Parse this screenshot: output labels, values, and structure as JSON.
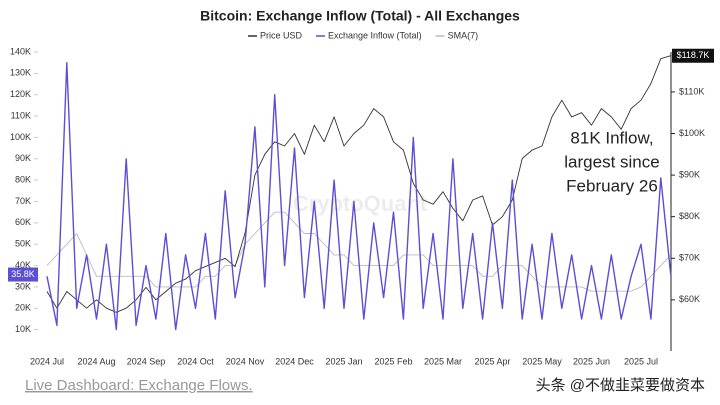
{
  "chart_data": {
    "type": "line",
    "title": "Bitcoin: Exchange Inflow (Total) - All Exchanges",
    "categories": [
      "2024 Jul",
      null,
      null,
      null,
      null,
      "2024 Aug",
      null,
      null,
      null,
      null,
      "2024 Sep",
      null,
      null,
      null,
      null,
      "2024 Oct",
      null,
      null,
      null,
      null,
      "2024 Nov",
      null,
      null,
      null,
      null,
      "2024 Dec",
      null,
      null,
      null,
      null,
      "2025 Jan",
      null,
      null,
      null,
      null,
      "2025 Feb",
      null,
      null,
      null,
      null,
      "2025 Mar",
      null,
      null,
      null,
      null,
      "2025 Apr",
      null,
      null,
      null,
      null,
      "2025 May",
      null,
      null,
      null,
      null,
      "2025 Jun",
      null,
      null,
      null,
      null,
      "2025 Jul",
      null,
      null,
      null
    ],
    "series": [
      {
        "name": "Price USD",
        "color": "#333333",
        "axis": "y2",
        "values": [
          62000,
          58000,
          62000,
          60000,
          58000,
          60000,
          58000,
          57000,
          58000,
          60000,
          63000,
          60000,
          62000,
          64000,
          65000,
          67000,
          68000,
          69000,
          70000,
          68000,
          76000,
          90000,
          95000,
          98000,
          97000,
          100000,
          95000,
          102000,
          98000,
          104000,
          97000,
          100000,
          102000,
          106000,
          104000,
          98000,
          96000,
          88000,
          84000,
          83000,
          86000,
          82000,
          79000,
          84000,
          85000,
          78000,
          80000,
          84000,
          94000,
          96000,
          97000,
          104000,
          108000,
          104000,
          105000,
          102000,
          106000,
          104000,
          101000,
          106000,
          108000,
          112000,
          118000,
          118700
        ],
        "value_labels": [
          null,
          null,
          null,
          null,
          null,
          null,
          null,
          null,
          null,
          null,
          null,
          null,
          null,
          null,
          null,
          null,
          null,
          null,
          null,
          null,
          null,
          null,
          null,
          null,
          null,
          null,
          null,
          null,
          null,
          null,
          null,
          null,
          null,
          null,
          null,
          null,
          null,
          null,
          null,
          null,
          null,
          null,
          null,
          null,
          null,
          null,
          null,
          null,
          null,
          null,
          null,
          null,
          null,
          null,
          null,
          null,
          null,
          null,
          null,
          null,
          null,
          null,
          null,
          "$118.7K"
        ]
      },
      {
        "name": "Exchange Inflow (Total)",
        "color": "#5b4fd6",
        "values": [
          35000,
          12000,
          135000,
          20000,
          45000,
          15000,
          50000,
          10000,
          90000,
          12000,
          40000,
          15000,
          55000,
          10000,
          45000,
          20000,
          55000,
          15000,
          75000,
          25000,
          50000,
          105000,
          30000,
          120000,
          40000,
          95000,
          25000,
          70000,
          20000,
          80000,
          20000,
          70000,
          15000,
          60000,
          25000,
          65000,
          15000,
          100000,
          20000,
          55000,
          15000,
          90000,
          20000,
          55000,
          15000,
          60000,
          20000,
          80000,
          15000,
          50000,
          15000,
          55000,
          20000,
          45000,
          15000,
          40000,
          15000,
          45000,
          15000,
          35000,
          50000,
          15000,
          81000,
          35800
        ],
        "value_labels": [
          null,
          null,
          null,
          null,
          null,
          null,
          null,
          null,
          null,
          null,
          null,
          null,
          null,
          null,
          null,
          null,
          null,
          null,
          null,
          null,
          null,
          null,
          null,
          null,
          null,
          null,
          null,
          null,
          null,
          null,
          null,
          null,
          null,
          null,
          null,
          null,
          null,
          null,
          null,
          null,
          null,
          null,
          null,
          null,
          null,
          null,
          null,
          null,
          null,
          null,
          null,
          null,
          null,
          null,
          null,
          null,
          null,
          null,
          null,
          null,
          null,
          null,
          null,
          "35.8K"
        ]
      },
      {
        "name": "SMA(7)",
        "color": "#bbbbbb",
        "values": [
          40000,
          45000,
          50000,
          55000,
          45000,
          35000,
          35000,
          35000,
          35000,
          35000,
          35000,
          30000,
          30000,
          30000,
          30000,
          30000,
          35000,
          35000,
          40000,
          40000,
          50000,
          55000,
          60000,
          65000,
          65000,
          60000,
          55000,
          55000,
          50000,
          45000,
          45000,
          40000,
          40000,
          40000,
          40000,
          40000,
          45000,
          45000,
          45000,
          40000,
          40000,
          40000,
          40000,
          40000,
          35000,
          35000,
          40000,
          40000,
          40000,
          35000,
          30000,
          30000,
          30000,
          30000,
          30000,
          28000,
          28000,
          28000,
          28000,
          28000,
          30000,
          35000,
          40000,
          45000
        ]
      }
    ],
    "ylim": [
      0,
      140000
    ],
    "yticks": [
      {
        "value": 10000,
        "label": "10K"
      },
      {
        "value": 20000,
        "label": "20K"
      },
      {
        "value": 30000,
        "label": "30K"
      },
      {
        "value": 40000,
        "label": "40K"
      },
      {
        "value": 50000,
        "label": "50K"
      },
      {
        "value": 60000,
        "label": "60K"
      },
      {
        "value": 70000,
        "label": "70K"
      },
      {
        "value": 80000,
        "label": "80K"
      },
      {
        "value": 90000,
        "label": "90K"
      },
      {
        "value": 100000,
        "label": "100K"
      },
      {
        "value": 110000,
        "label": "110K"
      },
      {
        "value": 120000,
        "label": "120K"
      },
      {
        "value": 130000,
        "label": "130K"
      },
      {
        "value": 140000,
        "label": "140K"
      }
    ],
    "y2lim": [
      47700,
      119600
    ],
    "y2ticks": [
      {
        "value": 60000,
        "label": "$60K"
      },
      {
        "value": 70000,
        "label": "$70K"
      },
      {
        "value": 80000,
        "label": "$80K"
      },
      {
        "value": 90000,
        "label": "$90K"
      },
      {
        "value": 100000,
        "label": "$100K"
      },
      {
        "value": 110000,
        "label": "$110K"
      }
    ],
    "annotation": [
      "81K Inflow,",
      "largest since",
      "February 26"
    ],
    "watermark": "CryptoQuant",
    "footer": "Live Dashboard: Exchange Flows.",
    "credit": "头条 @不做韭菜要做资本"
  }
}
